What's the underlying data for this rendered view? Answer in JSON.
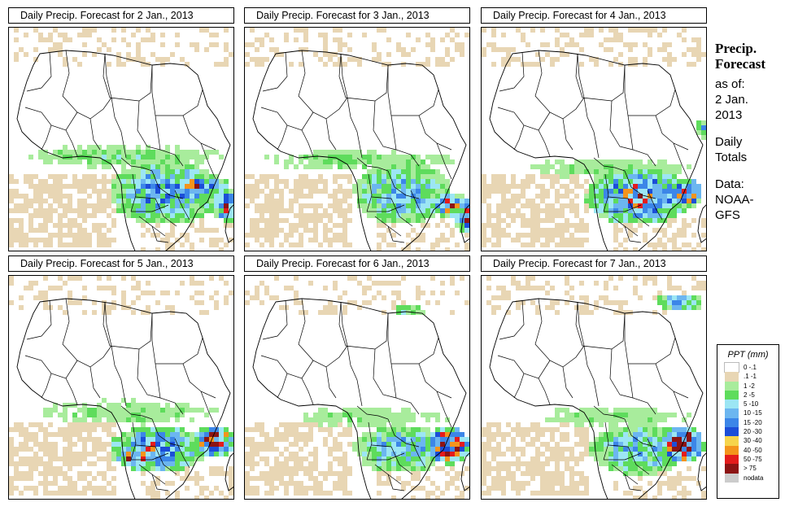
{
  "panels": [
    {
      "title": "Daily Precip. Forecast for  2 Jan., 2013",
      "variant": 0
    },
    {
      "title": "Daily Precip. Forecast for  3 Jan., 2013",
      "variant": 1
    },
    {
      "title": "Daily Precip. Forecast for  4 Jan., 2013",
      "variant": 2
    },
    {
      "title": "Daily Precip. Forecast for  5 Jan., 2013",
      "variant": 3
    },
    {
      "title": "Daily Precip. Forecast for  6 Jan., 2013",
      "variant": 4
    },
    {
      "title": "Daily Precip. Forecast for  7 Jan., 2013",
      "variant": 5
    }
  ],
  "side": {
    "title_line1": "Precip.",
    "title_line2": "Forecast",
    "asof": "as of:",
    "date_line1": "2 Jan.",
    "date_line2": "2013",
    "totals_line1": "Daily",
    "totals_line2": "Totals",
    "data_line1": "Data:",
    "data_line2": "NOAA-",
    "data_line3": "GFS"
  },
  "legend": {
    "title": "PPT (mm)",
    "classes": [
      {
        "label": "0 -.1",
        "color": "#ffffff"
      },
      {
        "label": ".1 -1",
        "color": "#e8d6b4"
      },
      {
        "label": "1 -2",
        "color": "#a8ec9c"
      },
      {
        "label": "2 -5",
        "color": "#5edc5c"
      },
      {
        "label": "5 -10",
        "color": "#9ce6f4"
      },
      {
        "label": "10 -15",
        "color": "#6cb6f0"
      },
      {
        "label": "15 -20",
        "color": "#3c86e8"
      },
      {
        "label": "20 -30",
        "color": "#1c4ed8"
      },
      {
        "label": "30 -40",
        "color": "#f6d44c"
      },
      {
        "label": "40 -50",
        "color": "#f4941c"
      },
      {
        "label": "50 -75",
        "color": "#e41c1c"
      },
      {
        "label": "> 75",
        "color": "#8c1414"
      },
      {
        "label": "nodata",
        "color": "#cccccc"
      }
    ]
  }
}
